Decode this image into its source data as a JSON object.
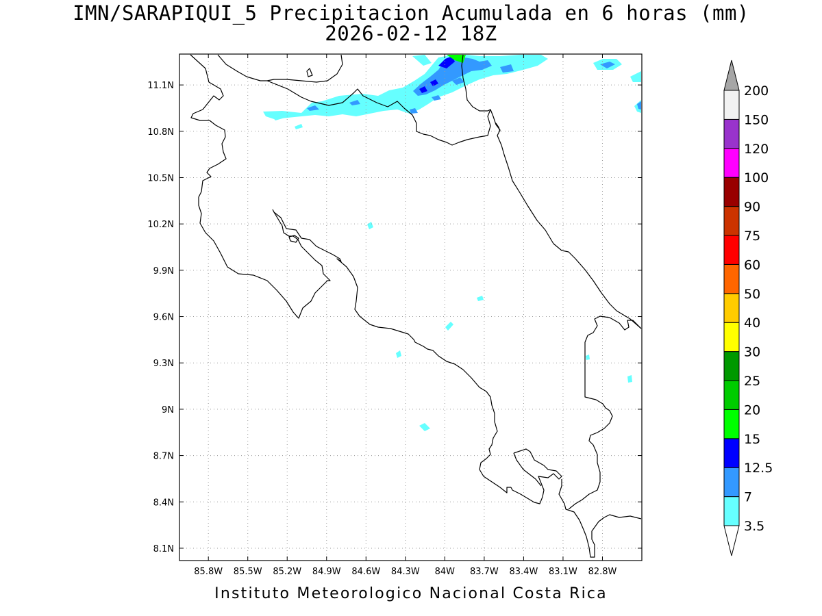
{
  "title_line1": "IMN/SARAPIQUI_5 Precipitacion Acumulada en 6 horas (mm)",
  "title_line2": "2026-02-12 18Z",
  "footer": "Instituto Meteorologico Nacional Costa Rica",
  "map": {
    "lon_range": [
      -86.02,
      -82.5
    ],
    "lat_range": [
      8.02,
      11.3
    ],
    "x_ticks": [
      "85.8W",
      "85.5W",
      "85.2W",
      "84.9W",
      "84.6W",
      "84.3W",
      "84W",
      "83.7W",
      "83.4W",
      "83.1W",
      "82.8W"
    ],
    "y_ticks": [
      "11.1N",
      "10.8N",
      "10.5N",
      "10.2N",
      "9.9N",
      "9.6N",
      "9.3N",
      "9N",
      "8.7N",
      "8.4N",
      "8.1N"
    ],
    "grid": true,
    "grid_style": "dotted",
    "coastline_color": "#000000"
  },
  "colorbar": {
    "labels": [
      "3.5",
      "7",
      "12.5",
      "15",
      "20",
      "25",
      "30",
      "40",
      "50",
      "60",
      "75",
      "90",
      "100",
      "120",
      "150",
      "200"
    ],
    "colors": [
      "#66ffff",
      "#3399ff",
      "#0000ff",
      "#00ff00",
      "#00cc00",
      "#009900",
      "#ffff00",
      "#ffcc00",
      "#ff6600",
      "#ff0000",
      "#cc3300",
      "#990000",
      "#ff00ff",
      "#9933cc",
      "#f2f2f2"
    ],
    "over_color": "#a6a6a6",
    "under_color": "#ffffff"
  }
}
